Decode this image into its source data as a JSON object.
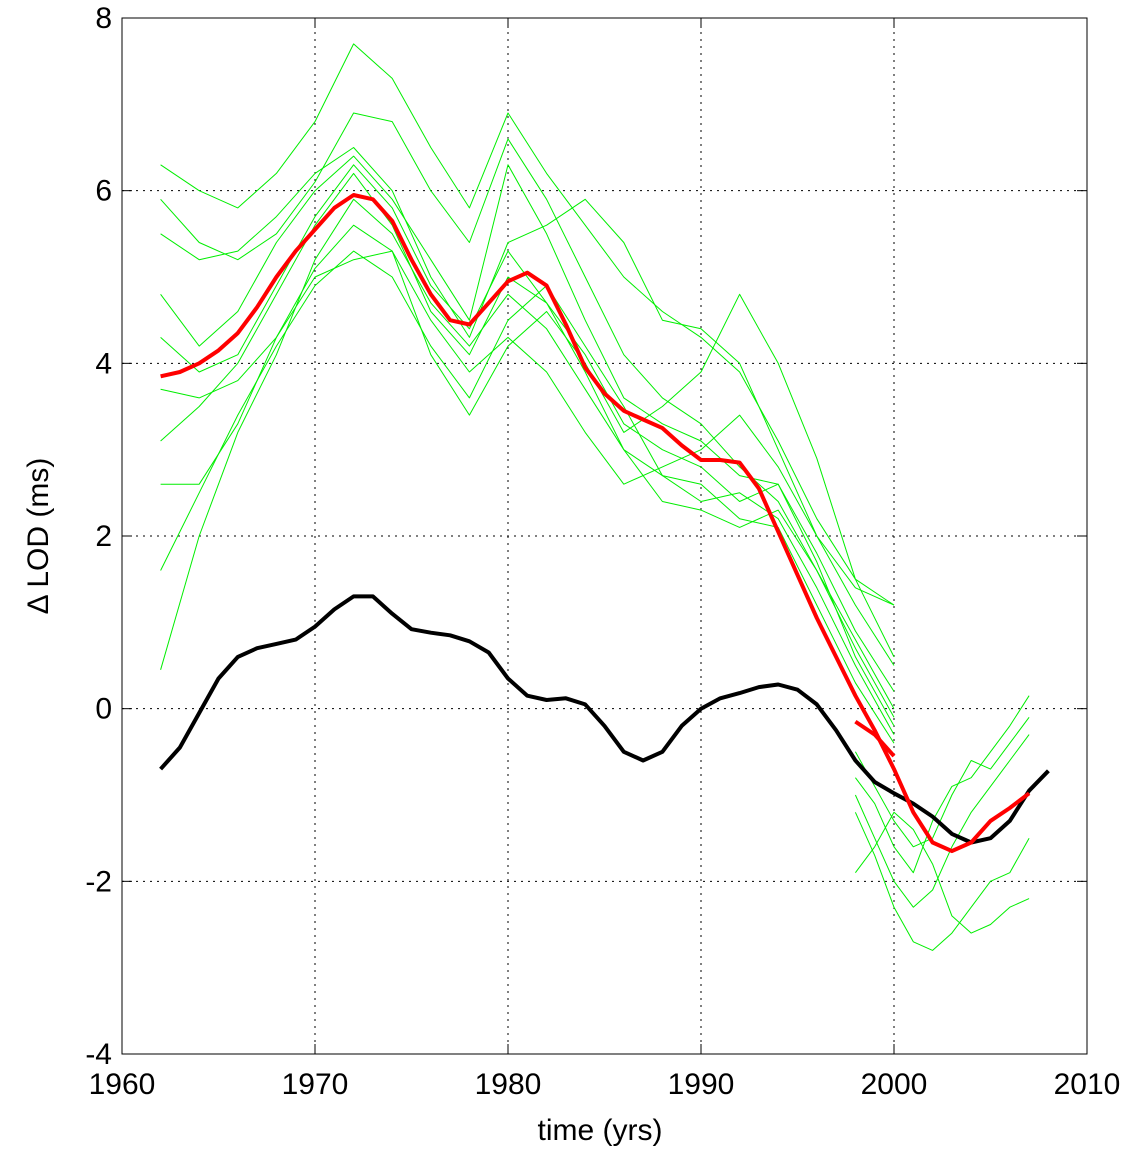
{
  "chart_data": {
    "type": "line",
    "xlabel": "time (yrs)",
    "ylabel": "Δ LOD (ms)",
    "xlim": [
      1960,
      2010
    ],
    "xticks": [
      1960,
      1970,
      1980,
      1990,
      2000,
      2010
    ],
    "ylim": [
      -4,
      8
    ],
    "yticks": [
      -4,
      -2,
      0,
      2,
      4,
      6,
      8
    ],
    "grid": true,
    "series": [
      {
        "color": "#00ee00",
        "width": 1,
        "x": [
          1962,
          1964,
          1966,
          1968,
          1970,
          1972,
          1974,
          1976,
          1978,
          1980,
          1982,
          1984,
          1986,
          1988,
          1990,
          1992,
          1994,
          1996,
          1998,
          2000
        ],
        "values": [
          6.3,
          6.0,
          5.8,
          6.2,
          6.8,
          7.7,
          7.3,
          6.5,
          5.8,
          6.9,
          6.2,
          5.6,
          5.0,
          4.6,
          4.3,
          3.9,
          3.1,
          2.2,
          1.5,
          1.2
        ]
      },
      {
        "color": "#00ee00",
        "width": 1,
        "x": [
          1962,
          1964,
          1966,
          1968,
          1970,
          1972,
          1974,
          1976,
          1978,
          1980,
          1982,
          1984,
          1986,
          1988,
          1990,
          1992,
          1994,
          1996,
          1998,
          2000
        ],
        "values": [
          4.8,
          4.2,
          4.6,
          5.4,
          6.0,
          6.4,
          5.9,
          5.2,
          4.5,
          6.3,
          5.5,
          4.5,
          3.6,
          3.3,
          3.1,
          2.7,
          2.6,
          1.8,
          0.9,
          0.2
        ]
      },
      {
        "color": "#00ee00",
        "width": 1,
        "x": [
          1962,
          1964,
          1966,
          1968,
          1970,
          1972,
          1974,
          1976,
          1978,
          1980,
          1982,
          1984,
          1986,
          1988,
          1990,
          1992,
          1994,
          1996,
          1998,
          2000
        ],
        "values": [
          3.1,
          3.5,
          4.0,
          4.8,
          5.6,
          6.2,
          5.6,
          4.6,
          4.1,
          5.0,
          4.7,
          3.9,
          3.0,
          2.7,
          2.6,
          2.2,
          2.1,
          1.2,
          0.3,
          -0.4
        ]
      },
      {
        "color": "#00ee00",
        "width": 1,
        "x": [
          1962,
          1964,
          1966,
          1968,
          1970,
          1972,
          1974,
          1976,
          1978,
          1980,
          1982,
          1984,
          1986,
          1988,
          1990,
          1992,
          1994,
          1996,
          1998,
          2000
        ],
        "values": [
          1.6,
          2.5,
          3.4,
          4.2,
          4.9,
          5.3,
          5.0,
          4.2,
          3.6,
          4.5,
          4.9,
          4.2,
          3.5,
          2.7,
          2.4,
          2.5,
          2.2,
          1.4,
          0.5,
          -0.3
        ]
      },
      {
        "color": "#00ee00",
        "width": 1,
        "x": [
          1962,
          1964,
          1966,
          1968,
          1970,
          1972,
          1974,
          1976,
          1978,
          1980,
          1982,
          1984,
          1986,
          1988,
          1990,
          1992,
          1994,
          1996,
          1998,
          2000
        ],
        "values": [
          0.45,
          2.0,
          3.2,
          4.1,
          5.2,
          5.9,
          5.5,
          4.7,
          4.2,
          4.8,
          4.4,
          3.7,
          3.0,
          2.4,
          2.3,
          2.1,
          2.3,
          1.6,
          0.7,
          -0.1
        ]
      },
      {
        "color": "#00ee00",
        "width": 1,
        "x": [
          1962,
          1964,
          1966,
          1968,
          1970,
          1972,
          1974,
          1976,
          1978,
          1980,
          1982,
          1984,
          1986,
          1988,
          1990,
          1992,
          1994,
          1996,
          1998,
          2000
        ],
        "values": [
          5.5,
          5.2,
          5.3,
          5.7,
          6.2,
          6.5,
          6.0,
          5.0,
          4.3,
          5.4,
          5.6,
          5.9,
          5.4,
          4.5,
          4.4,
          4.0,
          3.0,
          2.0,
          1.2,
          0.5
        ]
      },
      {
        "color": "#00ee00",
        "width": 1,
        "x": [
          1962,
          1964,
          1966,
          1968,
          1970,
          1972,
          1974,
          1976,
          1978,
          1980,
          1982,
          1984,
          1986,
          1988,
          1990,
          1992,
          1994,
          1996,
          1998,
          2000
        ],
        "values": [
          2.6,
          2.6,
          3.3,
          4.3,
          5.0,
          5.2,
          5.3,
          4.1,
          3.4,
          4.2,
          4.6,
          4.0,
          3.2,
          3.5,
          3.9,
          4.8,
          4.0,
          2.9,
          1.5,
          0.6
        ]
      },
      {
        "color": "#00ee00",
        "width": 1,
        "x": [
          1962,
          1964,
          1966,
          1968,
          1970,
          1972,
          1974,
          1976,
          1978,
          1980,
          1982,
          1984,
          1986,
          1988,
          1990,
          1992,
          1994,
          1996,
          1998,
          2000
        ],
        "values": [
          5.9,
          5.4,
          5.2,
          5.5,
          6.1,
          6.9,
          6.8,
          6.0,
          5.4,
          6.6,
          5.9,
          5.0,
          4.1,
          3.6,
          3.3,
          2.8,
          2.4,
          1.6,
          0.8,
          0.0
        ]
      },
      {
        "color": "#00ee00",
        "width": 1,
        "x": [
          1962,
          1964,
          1966,
          1968,
          1970,
          1972,
          1974,
          1976,
          1978,
          1980,
          1982,
          1984,
          1986,
          1988,
          1990,
          1992,
          1994,
          1996,
          1998,
          2000
        ],
        "values": [
          3.7,
          3.6,
          3.8,
          4.3,
          5.1,
          5.6,
          5.3,
          4.5,
          3.9,
          4.3,
          3.9,
          3.2,
          2.6,
          2.8,
          3.0,
          3.4,
          2.8,
          2.0,
          1.4,
          1.2
        ]
      },
      {
        "color": "#00ee00",
        "width": 1,
        "x": [
          1962,
          1964,
          1966,
          1968,
          1970,
          1972,
          1974,
          1976,
          1978,
          1980,
          1982,
          1984,
          1986,
          1988,
          1990,
          1992,
          1994,
          1996,
          1998,
          2000
        ],
        "values": [
          4.3,
          3.9,
          4.1,
          4.9,
          5.7,
          6.3,
          5.8,
          4.9,
          4.4,
          5.3,
          4.7,
          4.1,
          3.3,
          3.0,
          2.8,
          2.4,
          2.6,
          1.7,
          0.6,
          -0.2
        ]
      },
      {
        "color": "#00ee00",
        "width": 1,
        "x": [
          1998,
          1999,
          2000,
          2001,
          2002,
          2003,
          2004,
          2005,
          2006,
          2007
        ],
        "values": [
          -1.9,
          -1.6,
          -1.2,
          -1.4,
          -1.8,
          -2.4,
          -2.6,
          -2.5,
          -2.3,
          -2.2
        ]
      },
      {
        "color": "#00ee00",
        "width": 1,
        "x": [
          1998,
          1999,
          2000,
          2001,
          2002,
          2003,
          2004,
          2005,
          2006,
          2007
        ],
        "values": [
          -0.8,
          -1.1,
          -1.6,
          -1.9,
          -1.3,
          -0.9,
          -0.8,
          -0.5,
          -0.2,
          0.15
        ]
      },
      {
        "color": "#00ee00",
        "width": 1,
        "x": [
          1998,
          1999,
          2000,
          2001,
          2002,
          2003,
          2004,
          2005,
          2006,
          2007
        ],
        "values": [
          -1.0,
          -1.5,
          -2.0,
          -2.3,
          -2.1,
          -1.6,
          -1.2,
          -0.9,
          -0.6,
          -0.3
        ]
      },
      {
        "color": "#00ee00",
        "width": 1,
        "x": [
          1998,
          1999,
          2000,
          2001,
          2002,
          2003,
          2004,
          2005,
          2006,
          2007
        ],
        "values": [
          -0.5,
          -0.9,
          -1.3,
          -1.6,
          -1.5,
          -1.0,
          -0.6,
          -0.7,
          -0.4,
          -0.1
        ]
      },
      {
        "color": "#00ee00",
        "width": 1,
        "x": [
          1998,
          1999,
          2000,
          2001,
          2002,
          2003,
          2004,
          2005,
          2006,
          2007
        ],
        "values": [
          -1.2,
          -1.7,
          -2.3,
          -2.7,
          -2.8,
          -2.6,
          -2.3,
          -2.0,
          -1.9,
          -1.5
        ]
      },
      {
        "color": "#000000",
        "width": 4,
        "x": [
          1962,
          1963,
          1964,
          1965,
          1966,
          1967,
          1968,
          1969,
          1970,
          1971,
          1972,
          1973,
          1974,
          1975,
          1976,
          1977,
          1978,
          1979,
          1980,
          1981,
          1982,
          1983,
          1984,
          1985,
          1986,
          1987,
          1988,
          1989,
          1990,
          1991,
          1992,
          1993,
          1994,
          1995,
          1996,
          1997,
          1998,
          1999,
          2000,
          2001,
          2002,
          2003,
          2004,
          2005,
          2006,
          2007,
          2008
        ],
        "values": [
          -0.7,
          -0.45,
          -0.05,
          0.35,
          0.6,
          0.7,
          0.75,
          0.8,
          0.95,
          1.15,
          1.3,
          1.3,
          1.1,
          0.92,
          0.88,
          0.85,
          0.78,
          0.65,
          0.35,
          0.15,
          0.1,
          0.12,
          0.05,
          -0.2,
          -0.5,
          -0.6,
          -0.5,
          -0.2,
          0.0,
          0.12,
          0.18,
          0.25,
          0.28,
          0.22,
          0.05,
          -0.25,
          -0.6,
          -0.85,
          -0.98,
          -1.1,
          -1.25,
          -1.45,
          -1.55,
          -1.5,
          -1.3,
          -0.95,
          -0.72
        ]
      },
      {
        "color": "#ff0000",
        "width": 4,
        "x": [
          1998,
          1999,
          2000
        ],
        "values": [
          -0.15,
          -0.3,
          -0.55
        ]
      },
      {
        "color": "#ff0000",
        "width": 4,
        "x": [
          1962,
          1963,
          1964,
          1965,
          1966,
          1967,
          1968,
          1969,
          1970,
          1971,
          1972,
          1973,
          1974,
          1975,
          1976,
          1977,
          1978,
          1979,
          1980,
          1981,
          1982,
          1983,
          1984,
          1985,
          1986,
          1987,
          1988,
          1989,
          1990,
          1991,
          1992,
          1993,
          1994,
          1995,
          1996,
          1997,
          1998,
          1999,
          2000,
          2001,
          2002,
          2003,
          2004,
          2005,
          2006,
          2007
        ],
        "values": [
          3.85,
          3.9,
          4.0,
          4.15,
          4.35,
          4.65,
          5.0,
          5.3,
          5.55,
          5.8,
          5.95,
          5.9,
          5.65,
          5.2,
          4.8,
          4.5,
          4.45,
          4.7,
          4.95,
          5.05,
          4.9,
          4.45,
          3.95,
          3.65,
          3.45,
          3.35,
          3.25,
          3.05,
          2.88,
          2.88,
          2.85,
          2.55,
          2.05,
          1.55,
          1.05,
          0.6,
          0.15,
          -0.25,
          -0.7,
          -1.2,
          -1.55,
          -1.65,
          -1.55,
          -1.3,
          -1.15,
          -0.98
        ]
      }
    ]
  }
}
